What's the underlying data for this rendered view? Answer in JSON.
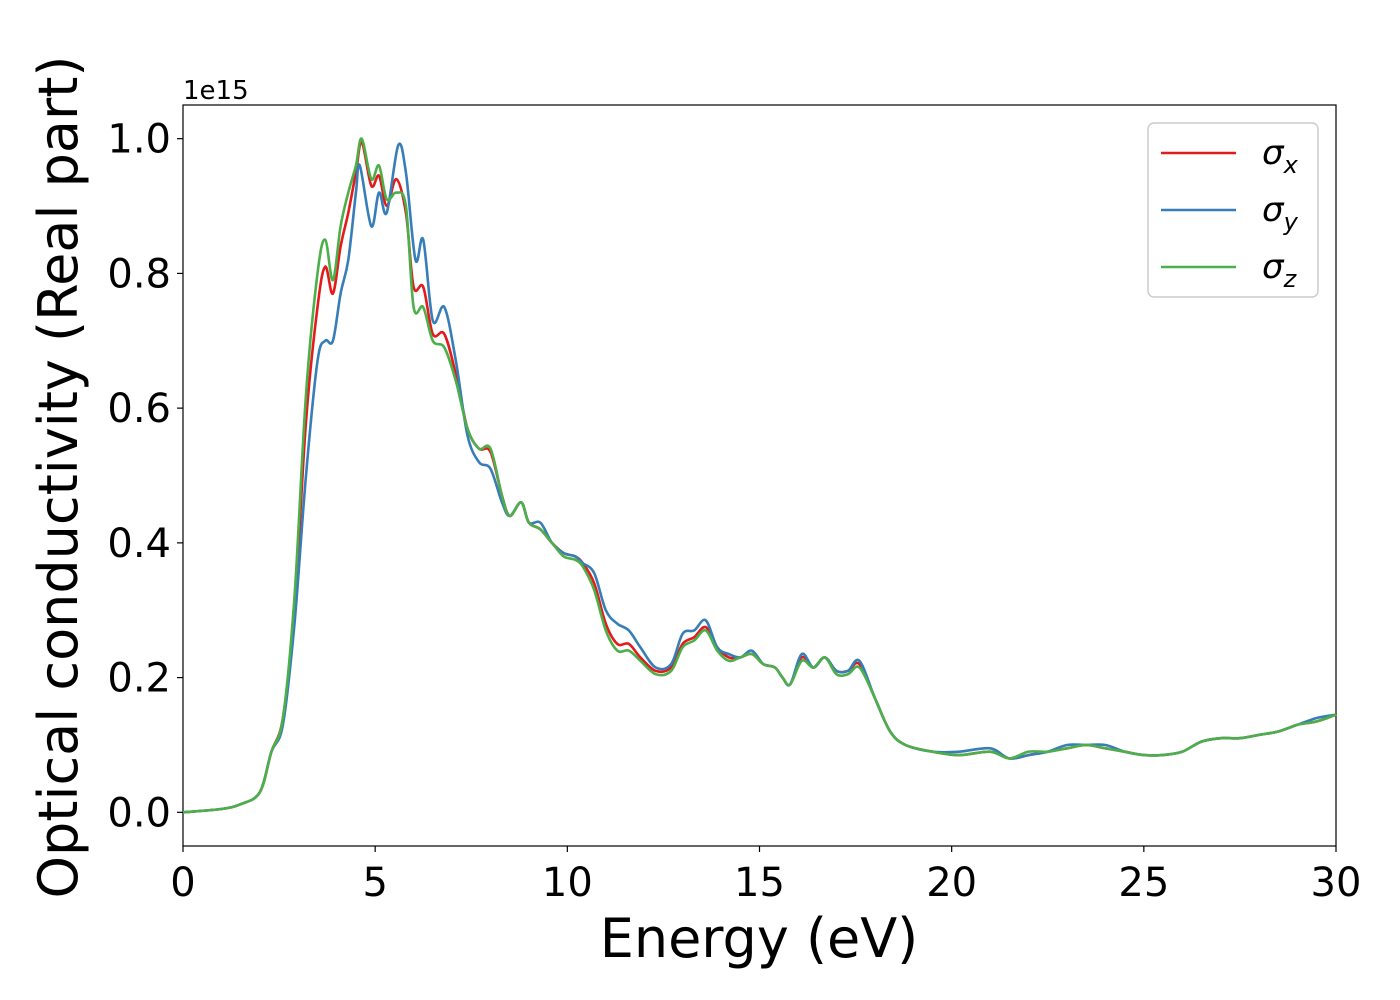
{
  "chart_data": {
    "type": "line",
    "xlabel": "Energy (eV)",
    "ylabel": "Optical conductivity (Real part)",
    "y_offset_label": "1e15",
    "xlim": [
      0,
      30
    ],
    "ylim": [
      -0.05,
      1.05
    ],
    "x_ticks": [
      0,
      5,
      10,
      15,
      20,
      25,
      30
    ],
    "x_tick_labels": [
      "0",
      "5",
      "10",
      "15",
      "20",
      "25",
      "30"
    ],
    "y_ticks": [
      0.0,
      0.2,
      0.4,
      0.6,
      0.8,
      1.0
    ],
    "y_tick_labels": [
      "0.0",
      "0.2",
      "0.4",
      "0.6",
      "0.8",
      "1.0"
    ],
    "grid": false,
    "legend_position": "top-right",
    "series": [
      {
        "name": "σx",
        "symbol": "σ",
        "subscript": "x",
        "color": "#e41a1c",
        "points": [
          [
            0,
            0
          ],
          [
            1,
            0.005
          ],
          [
            1.5,
            0.012
          ],
          [
            2,
            0.03
          ],
          [
            2.3,
            0.09
          ],
          [
            2.6,
            0.14
          ],
          [
            2.9,
            0.3
          ],
          [
            3.2,
            0.58
          ],
          [
            3.5,
            0.75
          ],
          [
            3.7,
            0.81
          ],
          [
            3.9,
            0.77
          ],
          [
            4.1,
            0.84
          ],
          [
            4.3,
            0.89
          ],
          [
            4.5,
            0.95
          ],
          [
            4.65,
            0.995
          ],
          [
            4.9,
            0.93
          ],
          [
            5.1,
            0.945
          ],
          [
            5.3,
            0.9
          ],
          [
            5.55,
            0.94
          ],
          [
            5.8,
            0.89
          ],
          [
            6.0,
            0.78
          ],
          [
            6.25,
            0.78
          ],
          [
            6.5,
            0.71
          ],
          [
            6.8,
            0.71
          ],
          [
            7.1,
            0.65
          ],
          [
            7.4,
            0.57
          ],
          [
            7.7,
            0.54
          ],
          [
            8.0,
            0.535
          ],
          [
            8.3,
            0.47
          ],
          [
            8.5,
            0.44
          ],
          [
            8.8,
            0.46
          ],
          [
            9.0,
            0.43
          ],
          [
            9.3,
            0.42
          ],
          [
            9.6,
            0.4
          ],
          [
            9.9,
            0.385
          ],
          [
            10.2,
            0.38
          ],
          [
            10.4,
            0.37
          ],
          [
            10.7,
            0.34
          ],
          [
            11.0,
            0.28
          ],
          [
            11.3,
            0.25
          ],
          [
            11.6,
            0.25
          ],
          [
            11.9,
            0.23
          ],
          [
            12.3,
            0.21
          ],
          [
            12.7,
            0.215
          ],
          [
            13.0,
            0.25
          ],
          [
            13.3,
            0.26
          ],
          [
            13.6,
            0.275
          ],
          [
            13.9,
            0.245
          ],
          [
            14.2,
            0.23
          ],
          [
            14.5,
            0.23
          ],
          [
            14.8,
            0.235
          ],
          [
            15.1,
            0.22
          ],
          [
            15.4,
            0.215
          ],
          [
            15.6,
            0.2
          ],
          [
            15.8,
            0.19
          ],
          [
            16.1,
            0.23
          ],
          [
            16.4,
            0.215
          ],
          [
            16.7,
            0.23
          ],
          [
            17.0,
            0.21
          ],
          [
            17.3,
            0.21
          ],
          [
            17.6,
            0.22
          ],
          [
            18.0,
            0.17
          ],
          [
            18.4,
            0.12
          ],
          [
            18.8,
            0.1
          ],
          [
            19.5,
            0.09
          ],
          [
            20.2,
            0.085
          ],
          [
            21.0,
            0.09
          ],
          [
            21.5,
            0.08
          ],
          [
            22.0,
            0.085
          ],
          [
            22.5,
            0.09
          ],
          [
            23.0,
            0.095
          ],
          [
            23.5,
            0.1
          ],
          [
            24.0,
            0.095
          ],
          [
            24.5,
            0.09
          ],
          [
            25.0,
            0.085
          ],
          [
            25.5,
            0.085
          ],
          [
            26.0,
            0.09
          ],
          [
            26.5,
            0.105
          ],
          [
            27.0,
            0.11
          ],
          [
            27.5,
            0.11
          ],
          [
            28.0,
            0.115
          ],
          [
            28.5,
            0.12
          ],
          [
            29.0,
            0.13
          ],
          [
            29.5,
            0.135
          ],
          [
            30.0,
            0.145
          ]
        ]
      },
      {
        "name": "σy",
        "symbol": "σ",
        "subscript": "y",
        "color": "#377eb8",
        "points": [
          [
            0,
            0
          ],
          [
            1,
            0.005
          ],
          [
            1.5,
            0.012
          ],
          [
            2,
            0.03
          ],
          [
            2.3,
            0.09
          ],
          [
            2.6,
            0.13
          ],
          [
            2.9,
            0.28
          ],
          [
            3.2,
            0.5
          ],
          [
            3.5,
            0.67
          ],
          [
            3.7,
            0.7
          ],
          [
            3.9,
            0.7
          ],
          [
            4.1,
            0.77
          ],
          [
            4.3,
            0.82
          ],
          [
            4.5,
            0.92
          ],
          [
            4.6,
            0.96
          ],
          [
            4.9,
            0.87
          ],
          [
            5.1,
            0.92
          ],
          [
            5.3,
            0.89
          ],
          [
            5.6,
            0.99
          ],
          [
            5.8,
            0.95
          ],
          [
            6.05,
            0.82
          ],
          [
            6.25,
            0.85
          ],
          [
            6.5,
            0.73
          ],
          [
            6.8,
            0.75
          ],
          [
            7.1,
            0.67
          ],
          [
            7.4,
            0.56
          ],
          [
            7.7,
            0.52
          ],
          [
            8.0,
            0.51
          ],
          [
            8.3,
            0.46
          ],
          [
            8.5,
            0.44
          ],
          [
            8.8,
            0.46
          ],
          [
            9.0,
            0.43
          ],
          [
            9.3,
            0.43
          ],
          [
            9.6,
            0.4
          ],
          [
            9.9,
            0.385
          ],
          [
            10.2,
            0.38
          ],
          [
            10.4,
            0.37
          ],
          [
            10.7,
            0.355
          ],
          [
            11.0,
            0.3
          ],
          [
            11.3,
            0.28
          ],
          [
            11.6,
            0.27
          ],
          [
            11.9,
            0.245
          ],
          [
            12.3,
            0.215
          ],
          [
            12.7,
            0.22
          ],
          [
            13.0,
            0.265
          ],
          [
            13.3,
            0.27
          ],
          [
            13.6,
            0.285
          ],
          [
            13.9,
            0.245
          ],
          [
            14.2,
            0.235
          ],
          [
            14.5,
            0.23
          ],
          [
            14.8,
            0.24
          ],
          [
            15.1,
            0.22
          ],
          [
            15.4,
            0.215
          ],
          [
            15.6,
            0.2
          ],
          [
            15.8,
            0.19
          ],
          [
            16.1,
            0.235
          ],
          [
            16.4,
            0.215
          ],
          [
            16.7,
            0.23
          ],
          [
            17.0,
            0.21
          ],
          [
            17.3,
            0.21
          ],
          [
            17.6,
            0.225
          ],
          [
            18.0,
            0.17
          ],
          [
            18.4,
            0.12
          ],
          [
            18.8,
            0.1
          ],
          [
            19.5,
            0.09
          ],
          [
            20.2,
            0.09
          ],
          [
            21.0,
            0.095
          ],
          [
            21.5,
            0.08
          ],
          [
            22.0,
            0.085
          ],
          [
            22.5,
            0.09
          ],
          [
            23.0,
            0.1
          ],
          [
            23.5,
            0.1
          ],
          [
            24.0,
            0.1
          ],
          [
            24.5,
            0.09
          ],
          [
            25.0,
            0.085
          ],
          [
            25.5,
            0.085
          ],
          [
            26.0,
            0.09
          ],
          [
            26.5,
            0.105
          ],
          [
            27.0,
            0.11
          ],
          [
            27.5,
            0.11
          ],
          [
            28.0,
            0.115
          ],
          [
            28.5,
            0.12
          ],
          [
            29.0,
            0.13
          ],
          [
            29.5,
            0.14
          ],
          [
            30.0,
            0.145
          ]
        ]
      },
      {
        "name": "σz",
        "symbol": "σ",
        "subscript": "z",
        "color": "#4daf4a",
        "points": [
          [
            0,
            0
          ],
          [
            1,
            0.005
          ],
          [
            1.5,
            0.012
          ],
          [
            2,
            0.03
          ],
          [
            2.3,
            0.09
          ],
          [
            2.6,
            0.14
          ],
          [
            2.9,
            0.32
          ],
          [
            3.2,
            0.62
          ],
          [
            3.5,
            0.8
          ],
          [
            3.7,
            0.85
          ],
          [
            3.9,
            0.79
          ],
          [
            4.1,
            0.87
          ],
          [
            4.3,
            0.92
          ],
          [
            4.5,
            0.96
          ],
          [
            4.65,
            1.0
          ],
          [
            4.9,
            0.94
          ],
          [
            5.1,
            0.96
          ],
          [
            5.3,
            0.91
          ],
          [
            5.55,
            0.92
          ],
          [
            5.8,
            0.9
          ],
          [
            6.0,
            0.75
          ],
          [
            6.25,
            0.75
          ],
          [
            6.5,
            0.7
          ],
          [
            6.8,
            0.69
          ],
          [
            7.1,
            0.64
          ],
          [
            7.4,
            0.57
          ],
          [
            7.7,
            0.54
          ],
          [
            8.0,
            0.54
          ],
          [
            8.3,
            0.47
          ],
          [
            8.5,
            0.44
          ],
          [
            8.8,
            0.46
          ],
          [
            9.0,
            0.43
          ],
          [
            9.3,
            0.42
          ],
          [
            9.6,
            0.4
          ],
          [
            9.9,
            0.38
          ],
          [
            10.2,
            0.375
          ],
          [
            10.4,
            0.365
          ],
          [
            10.7,
            0.33
          ],
          [
            11.0,
            0.27
          ],
          [
            11.3,
            0.24
          ],
          [
            11.6,
            0.24
          ],
          [
            11.9,
            0.225
          ],
          [
            12.3,
            0.205
          ],
          [
            12.7,
            0.21
          ],
          [
            13.0,
            0.245
          ],
          [
            13.3,
            0.255
          ],
          [
            13.6,
            0.27
          ],
          [
            13.9,
            0.24
          ],
          [
            14.2,
            0.225
          ],
          [
            14.5,
            0.23
          ],
          [
            14.8,
            0.235
          ],
          [
            15.1,
            0.22
          ],
          [
            15.4,
            0.215
          ],
          [
            15.6,
            0.2
          ],
          [
            15.8,
            0.19
          ],
          [
            16.1,
            0.225
          ],
          [
            16.4,
            0.215
          ],
          [
            16.7,
            0.23
          ],
          [
            17.0,
            0.205
          ],
          [
            17.3,
            0.205
          ],
          [
            17.6,
            0.215
          ],
          [
            18.0,
            0.17
          ],
          [
            18.4,
            0.12
          ],
          [
            18.8,
            0.1
          ],
          [
            19.5,
            0.09
          ],
          [
            20.2,
            0.085
          ],
          [
            21.0,
            0.09
          ],
          [
            21.5,
            0.08
          ],
          [
            22.0,
            0.09
          ],
          [
            22.5,
            0.09
          ],
          [
            23.0,
            0.095
          ],
          [
            23.5,
            0.1
          ],
          [
            24.0,
            0.095
          ],
          [
            24.5,
            0.09
          ],
          [
            25.0,
            0.085
          ],
          [
            25.5,
            0.085
          ],
          [
            26.0,
            0.09
          ],
          [
            26.5,
            0.105
          ],
          [
            27.0,
            0.11
          ],
          [
            27.5,
            0.11
          ],
          [
            28.0,
            0.115
          ],
          [
            28.5,
            0.12
          ],
          [
            29.0,
            0.13
          ],
          [
            29.5,
            0.135
          ],
          [
            30.0,
            0.145
          ]
        ]
      }
    ]
  }
}
